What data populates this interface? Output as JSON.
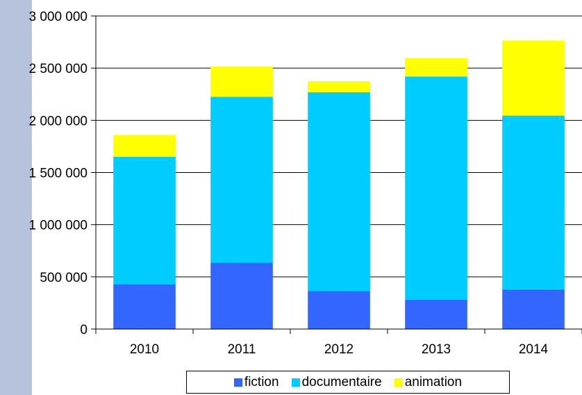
{
  "chart_data": {
    "type": "bar",
    "stacked": true,
    "title": "",
    "xlabel": "",
    "ylabel": "",
    "categories": [
      "2010",
      "2011",
      "2012",
      "2013",
      "2014"
    ],
    "series": [
      {
        "name": "fiction",
        "color": "#3366ff",
        "values": [
          430000,
          635000,
          365000,
          280000,
          380000
        ]
      },
      {
        "name": "documentaire",
        "color": "#00ccff",
        "values": [
          1220000,
          1590000,
          1905000,
          2140000,
          1665000
        ]
      },
      {
        "name": "animation",
        "color": "#ffff00",
        "values": [
          210000,
          290000,
          105000,
          175000,
          720000
        ]
      }
    ],
    "ylim": [
      0,
      3000000
    ],
    "yticks": [
      0,
      500000,
      1000000,
      1500000,
      2000000,
      2500000,
      3000000
    ],
    "ytick_labels": [
      "0",
      "500 000",
      "1 000 000",
      "1 500 000",
      "2 000 000",
      "2 500 000",
      "3 000 000"
    ],
    "grid": true,
    "legend_position": "bottom"
  }
}
